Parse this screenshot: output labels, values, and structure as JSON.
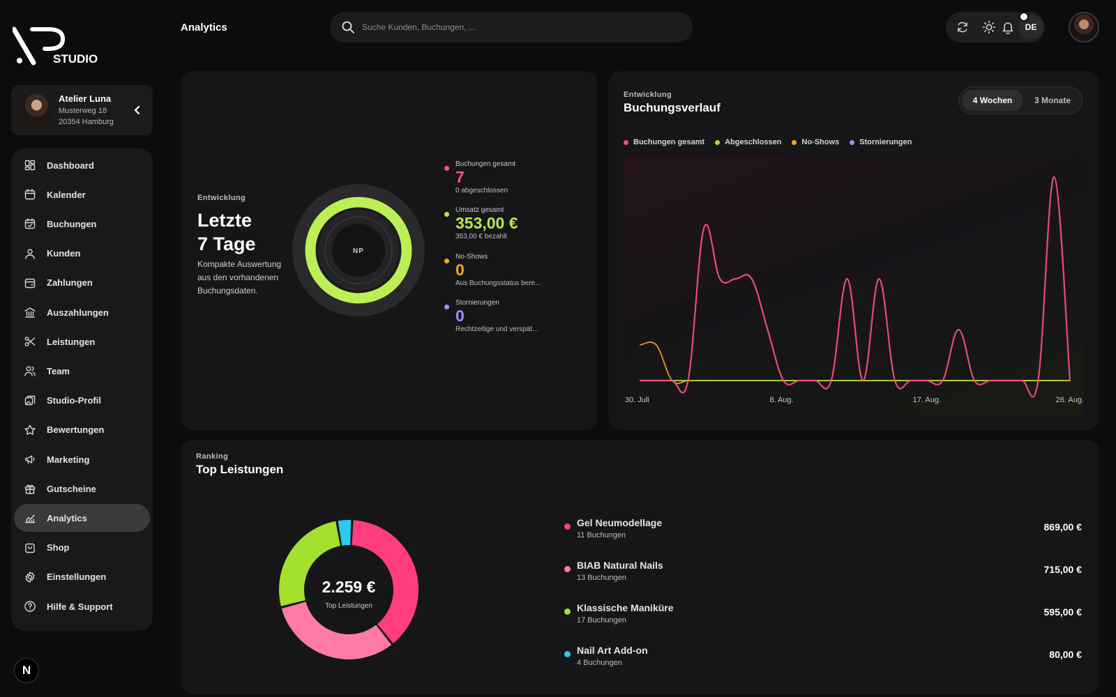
{
  "brand": {
    "logo_text": "STUDIO"
  },
  "studio": {
    "name": "Atelier Luna",
    "street": "Musterweg 18",
    "city": "20354 Hamburg"
  },
  "nav": [
    {
      "label": "Dashboard",
      "icon": "dashboard-icon"
    },
    {
      "label": "Kalender",
      "icon": "calendar-icon"
    },
    {
      "label": "Buchungen",
      "icon": "calendar-check-icon"
    },
    {
      "label": "Kunden",
      "icon": "users-icon"
    },
    {
      "label": "Zahlungen",
      "icon": "wallet-icon"
    },
    {
      "label": "Auszahlungen",
      "icon": "bank-icon"
    },
    {
      "label": "Leistungen",
      "icon": "scissors-icon"
    },
    {
      "label": "Team",
      "icon": "team-icon"
    },
    {
      "label": "Studio-Profil",
      "icon": "images-icon"
    },
    {
      "label": "Bewertungen",
      "icon": "star-icon"
    },
    {
      "label": "Marketing",
      "icon": "megaphone-icon"
    },
    {
      "label": "Gutscheine",
      "icon": "gift-icon"
    },
    {
      "label": "Analytics",
      "icon": "chart-line-icon",
      "active": true
    },
    {
      "label": "Shop",
      "icon": "shopping-bag-icon"
    },
    {
      "label": "Einstellungen",
      "icon": "gear-icon"
    },
    {
      "label": "Hilfe & Support",
      "icon": "help-icon"
    }
  ],
  "bottom_badge": "N",
  "header": {
    "title": "Analytics",
    "search_placeholder": "Suche Kunden, Buchungen, ...",
    "language": "DE",
    "icons": [
      "refresh-icon",
      "sun-icon",
      "bell-icon"
    ]
  },
  "kpi": {
    "eyebrow": "Entwicklung",
    "title_line1": "Letzte",
    "title_line2": "7 Tage",
    "description": "Kompakte Auswertung aus den vorhandenen Buchungsdaten.",
    "ring_label": "NP",
    "ring_progress": 1.0,
    "metrics": [
      {
        "label": "Buchungen gesamt",
        "value": "7",
        "sub": "0 abgeschlossen",
        "color": "#ff4f8b"
      },
      {
        "label": "Umsatz gesamt",
        "value": "353,00 €",
        "sub": "353,00 € bezahlt",
        "color": "#b5ea46"
      },
      {
        "label": "No-Shows",
        "value": "0",
        "sub": "Aus Buchungsstatus bere...",
        "color": "#ffa41f"
      },
      {
        "label": "Stornierungen",
        "value": "0",
        "sub": "Rechtzeitige und verspät...",
        "color": "#a98cff"
      }
    ]
  },
  "trend": {
    "eyebrow": "Entwicklung",
    "title": "Buchungsverlauf",
    "ranges": [
      "4 Wochen",
      "3 Monate"
    ],
    "active_range": "4 Wochen",
    "legend": [
      {
        "label": "Buchungen gesamt",
        "color": "#ff4f8b"
      },
      {
        "label": "Abgeschlossen",
        "color": "#a3dc3a"
      },
      {
        "label": "No-Shows",
        "color": "#ffa41f"
      },
      {
        "label": "Stornierungen",
        "color": "#a98cff"
      }
    ]
  },
  "chart_data": {
    "type": "line",
    "x_ticks": [
      "30. Juli",
      "8. Aug.",
      "17. Aug.",
      "26. Aug."
    ],
    "x": [
      "30. Juli",
      "31. Juli",
      "1. Aug.",
      "2. Aug.",
      "3. Aug.",
      "4. Aug.",
      "5. Aug.",
      "6. Aug.",
      "7. Aug.",
      "8. Aug.",
      "9. Aug.",
      "10. Aug.",
      "11. Aug.",
      "12. Aug.",
      "13. Aug.",
      "14. Aug.",
      "15. Aug.",
      "16. Aug.",
      "17. Aug.",
      "18. Aug.",
      "19. Aug.",
      "20. Aug.",
      "21. Aug.",
      "22. Aug.",
      "23. Aug.",
      "24. Aug.",
      "25. Aug.",
      "26. Aug."
    ],
    "ylim": [
      0,
      4
    ],
    "grid": true,
    "series": [
      {
        "name": "Buchungen gesamt",
        "color": "#ff4f8b",
        "values": [
          0,
          0,
          0,
          0,
          3,
          2,
          2,
          2,
          1,
          0,
          0,
          0,
          0,
          2,
          0,
          2,
          0,
          0,
          0,
          0,
          1,
          0,
          0,
          0,
          0,
          0,
          4,
          0
        ]
      },
      {
        "name": "Abgeschlossen",
        "color": "#a3dc3a",
        "values": [
          0,
          0,
          0,
          0,
          0,
          0,
          0,
          0,
          0,
          0,
          0,
          0,
          0,
          0,
          0,
          0,
          0,
          0,
          0,
          0,
          0,
          0,
          0,
          0,
          0,
          0,
          0,
          0
        ]
      },
      {
        "name": "No-Shows",
        "color": "#ffa41f",
        "values": [
          0.7,
          0.7,
          0,
          0,
          0,
          0,
          0,
          0,
          0,
          0,
          0,
          0,
          0,
          0,
          0,
          0,
          0,
          0,
          0,
          0,
          0,
          0,
          0,
          0,
          0,
          0,
          0,
          0
        ]
      },
      {
        "name": "Stornierungen",
        "color": "#a98cff",
        "values": [
          0,
          0,
          0,
          0,
          0,
          0,
          0,
          0,
          0,
          0,
          0,
          0,
          0,
          0,
          0,
          0,
          0,
          0,
          0,
          0,
          0,
          0,
          0,
          0,
          0,
          0,
          0,
          0
        ]
      }
    ]
  },
  "top": {
    "eyebrow": "Ranking",
    "title": "Top Leistungen",
    "total": "2.259 €",
    "total_caption": "Top Leistungen",
    "services": [
      {
        "name": "Gel Neumodellage",
        "count": "11 Buchungen",
        "amount": "869,00 €",
        "value": 869,
        "color": "#ff3d7f"
      },
      {
        "name": "BIAB Natural Nails",
        "count": "13 Buchungen",
        "amount": "715,00 €",
        "value": 715,
        "color": "#ff7aa8"
      },
      {
        "name": "Klassische Maniküre",
        "count": "17 Buchungen",
        "amount": "595,00 €",
        "value": 595,
        "color": "#a5e02e"
      },
      {
        "name": "Nail Art Add-on",
        "count": "4 Buchungen",
        "amount": "80,00 €",
        "value": 80,
        "color": "#2ec9ee"
      }
    ]
  }
}
